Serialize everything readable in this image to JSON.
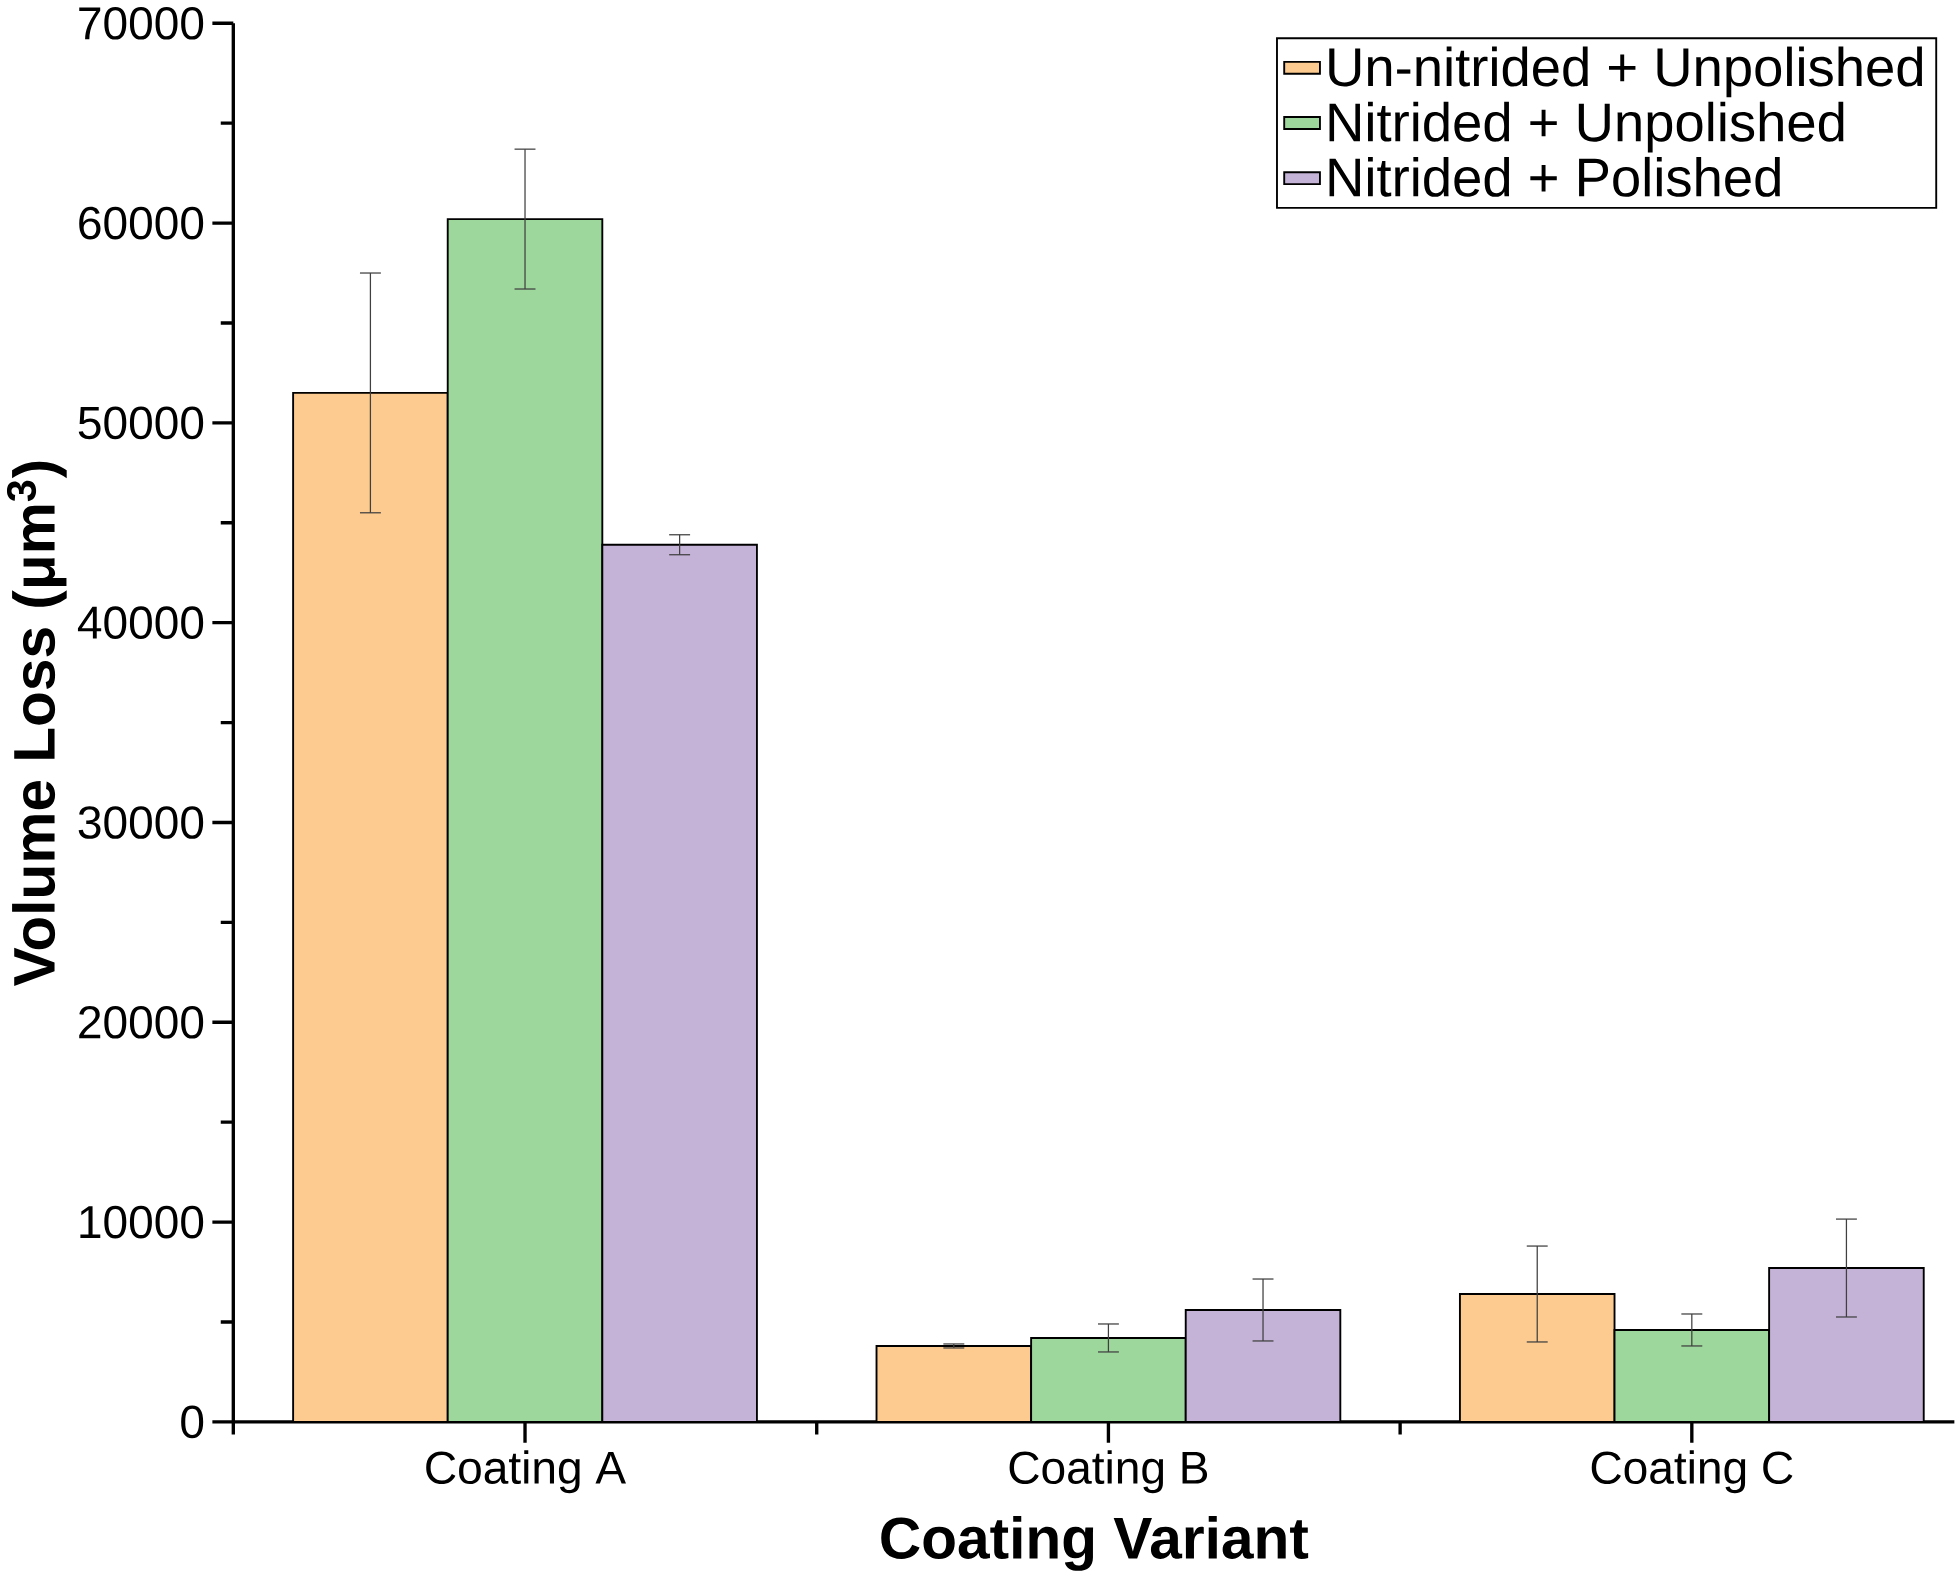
{
  "chart_data": {
    "type": "bar",
    "xlabel": "Coating Variant",
    "ylabel": "**Volume Loss (μm$^{3}$)**",
    "categories": [
      "Coating A",
      "Coating B",
      "Coating C"
    ],
    "series": [
      {
        "name": "Un-nitrided + Unpolished",
        "color": "#fdcb8f",
        "values": [
          51500,
          3800,
          6400
        ],
        "errors": [
          6000,
          100,
          2400
        ]
      },
      {
        "name": "Nitrided + Unpolished",
        "color": "#9dd79b",
        "values": [
          60200,
          4200,
          4600
        ],
        "errors": [
          3500,
          700,
          800
        ]
      },
      {
        "name": "Nitrided + Polished",
        "color": "#c5b3d7",
        "values": [
          43900,
          5600,
          7700
        ],
        "errors": [
          500,
          1550,
          2450
        ]
      }
    ],
    "ylim": [
      0,
      70000
    ],
    "yticks": [
      0,
      10000,
      20000,
      30000,
      40000,
      50000,
      60000,
      70000
    ],
    "legend": "top right"
  }
}
